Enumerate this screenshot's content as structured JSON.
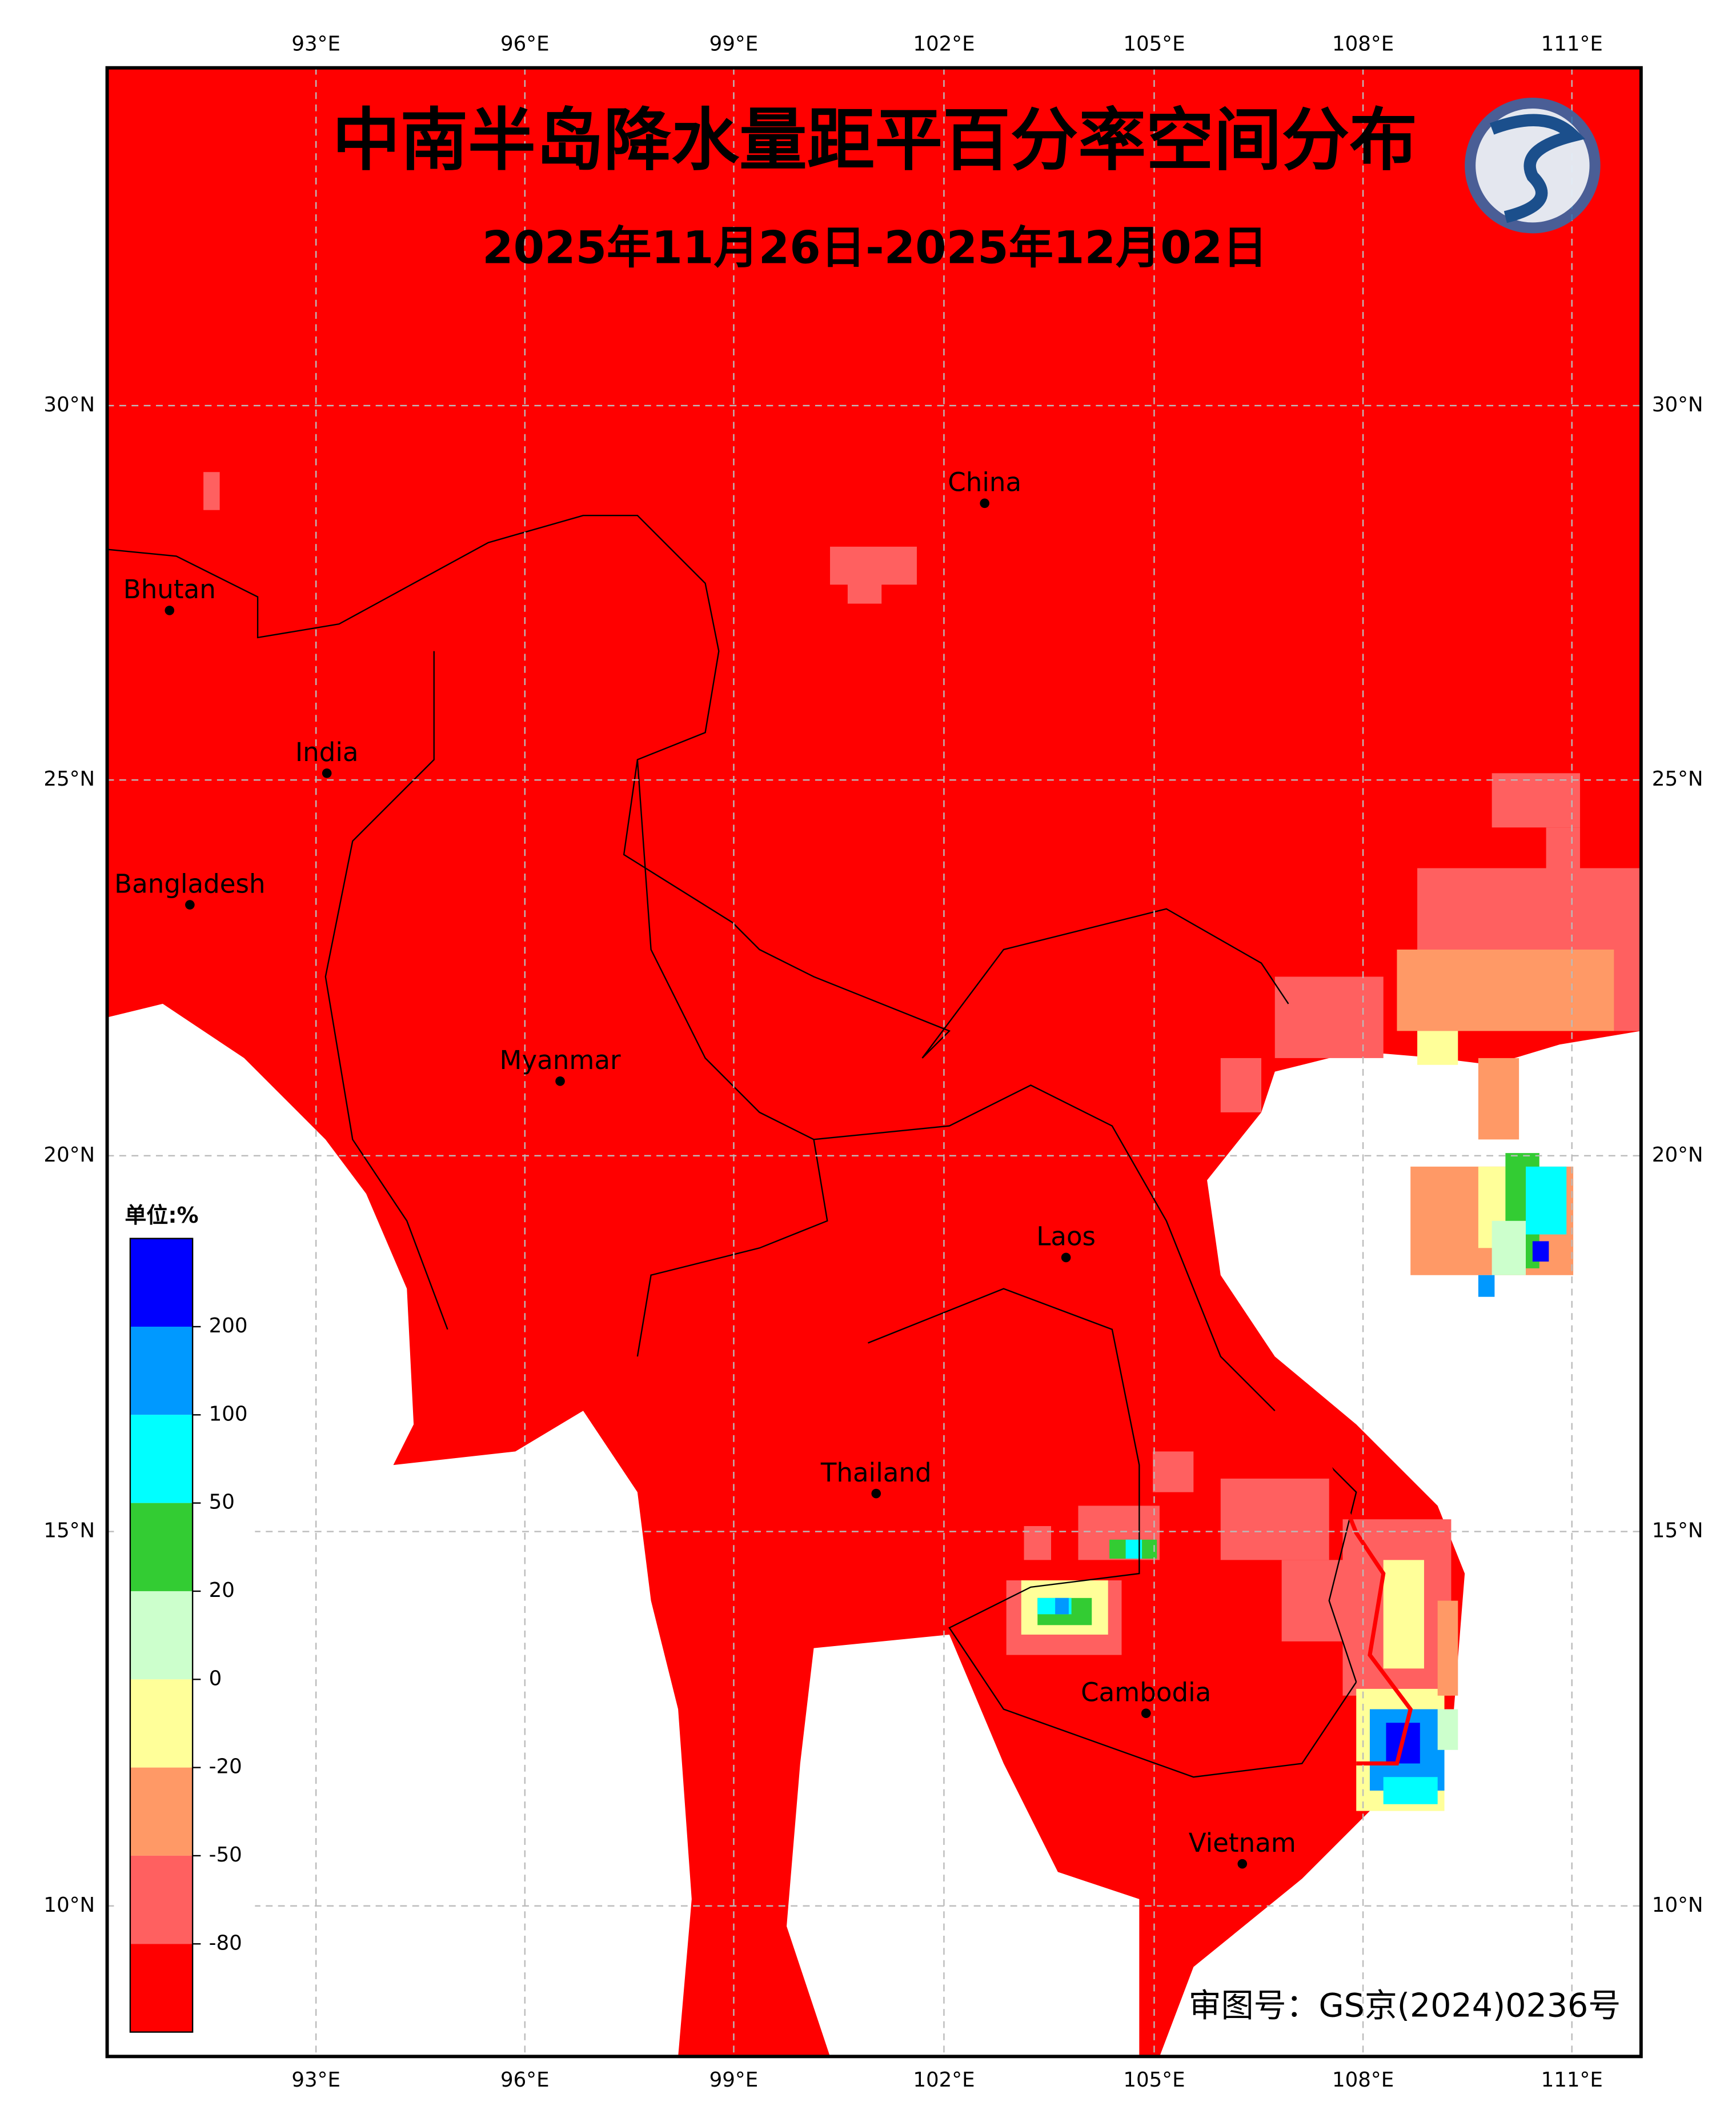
{
  "title": "中南半岛降水量距平百分率空间分布",
  "subtitle": "2025年11月26日-2025年12月02日",
  "lon_ticks": [
    "93°E",
    "96°E",
    "99°E",
    "102°E",
    "105°E",
    "108°E",
    "111°E"
  ],
  "lat_ticks": [
    "30°N",
    "25°N",
    "20°N",
    "15°N",
    "10°N"
  ],
  "places": [
    "Bhutan",
    "China",
    "India",
    "Bangladesh",
    "Myanmar",
    "Laos",
    "Thailand",
    "Cambodia",
    "Vietnam"
  ],
  "legend": {
    "unit": "单位:%",
    "colors": [
      "#0000ff",
      "#0099ff",
      "#00ffff",
      "#33cc33",
      "#ccffcc",
      "#ffff99",
      "#ff9966",
      "#ff6060",
      "#ff0000"
    ],
    "labels": [
      "200",
      "100",
      "50",
      "20",
      "0",
      "-20",
      "-50",
      "-80"
    ]
  },
  "credit": "审图号：GS京(2024)0236号"
}
